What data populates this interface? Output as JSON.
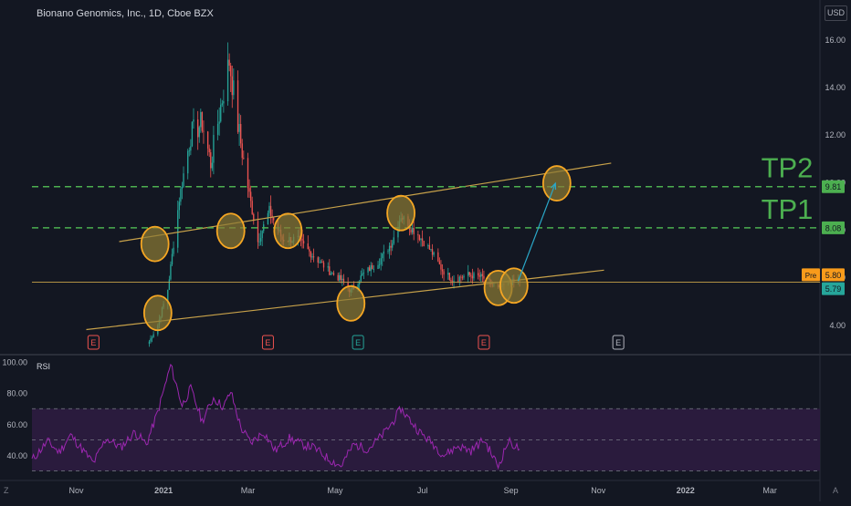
{
  "header": {
    "symbol_line": "Bionano Genomics, Inc., 1D, Cboe BZX",
    "currency": "USD"
  },
  "corner_left": "Z",
  "corner_right": "A",
  "colors": {
    "background": "#131722",
    "up": "#26a69a",
    "down": "#ef5350",
    "tp_line": "#4caf50",
    "tp_text": "#4caf50",
    "trendline": "#c8a24a",
    "circle_fill": "#8a7a35",
    "circle_stroke": "#f5a623",
    "arrow": "#2aa8c9",
    "rsi_line": "#9c27b0",
    "rsi_band": "#2a1b3d",
    "earnings": "#ef5350",
    "earnings_up": "#26a69a",
    "earnings_future": "#b2b5be",
    "pre_badge": "#f89b1b",
    "last_badge": "#26a69a",
    "tp_badge": "#4caf50"
  },
  "chart_data": [
    {
      "type": "candlestick",
      "title": "Bionano Genomics, Inc., 1D, Cboe BZX",
      "x_axis": {
        "type": "date",
        "range": [
          "2020-10-01",
          "2022-04-05"
        ],
        "tick_labels": [
          {
            "date": "2020-11-01",
            "label": "Nov"
          },
          {
            "date": "2021-01-01",
            "label": "2021"
          },
          {
            "date": "2021-03-01",
            "label": "Mar"
          },
          {
            "date": "2021-05-01",
            "label": "May"
          },
          {
            "date": "2021-07-01",
            "label": "Jul"
          },
          {
            "date": "2021-09-01",
            "label": "Sep"
          },
          {
            "date": "2021-11-01",
            "label": "Nov"
          },
          {
            "date": "2022-01-01",
            "label": "2022"
          },
          {
            "date": "2022-03-01",
            "label": "Mar"
          }
        ]
      },
      "y_axis": {
        "range": [
          2.9,
          16.7
        ],
        "ticks": [
          4.0,
          6.0,
          8.0,
          10.0,
          12.0,
          14.0,
          16.0
        ],
        "tick_labels": [
          "4.00",
          "6.00",
          "8.00",
          "10.00",
          "12.00",
          "14.00",
          "16.00"
        ],
        "unit": "USD"
      },
      "anchors": [
        [
          "2020-12-22",
          3.3
        ],
        [
          "2020-12-28",
          4.0
        ],
        [
          "2021-01-04",
          5.5
        ],
        [
          "2021-01-12",
          9.3
        ],
        [
          "2021-01-20",
          12.0
        ],
        [
          "2021-01-28",
          12.5
        ],
        [
          "2021-02-03",
          10.8
        ],
        [
          "2021-02-10",
          13.2
        ],
        [
          "2021-02-16",
          15.1
        ],
        [
          "2021-02-22",
          12.4
        ],
        [
          "2021-03-01",
          9.8
        ],
        [
          "2021-03-08",
          7.5
        ],
        [
          "2021-03-16",
          8.8
        ],
        [
          "2021-03-25",
          7.6
        ],
        [
          "2021-04-05",
          7.6
        ],
        [
          "2021-04-14",
          7.0
        ],
        [
          "2021-04-28",
          6.2
        ],
        [
          "2021-05-05",
          5.9
        ],
        [
          "2021-05-12",
          5.4
        ],
        [
          "2021-05-20",
          6.1
        ],
        [
          "2021-06-01",
          6.7
        ],
        [
          "2021-06-10",
          7.5
        ],
        [
          "2021-06-16",
          8.6
        ],
        [
          "2021-06-21",
          8.2
        ],
        [
          "2021-06-28",
          7.8
        ],
        [
          "2021-07-07",
          7.1
        ],
        [
          "2021-07-15",
          6.3
        ],
        [
          "2021-07-22",
          5.9
        ],
        [
          "2021-08-02",
          6.1
        ],
        [
          "2021-08-12",
          6.0
        ],
        [
          "2021-08-23",
          5.5
        ],
        [
          "2021-09-01",
          5.8
        ],
        [
          "2021-09-07",
          5.79
        ]
      ],
      "last_price": 5.79,
      "pre_market_price": 5.8,
      "price_badges": {
        "pre_label": "Pre",
        "pre_value": "5.80",
        "last_value": "5.79",
        "tp1_value": "8.08",
        "tp2_value": "9.81"
      },
      "levels": [
        {
          "name": "TP2",
          "value": 9.81,
          "style": "dashed"
        },
        {
          "name": "TP1",
          "value": 8.08,
          "style": "dashed"
        }
      ],
      "horizontal_line": {
        "value": 5.79
      },
      "channel": {
        "upper": [
          [
            "2020-12-01",
            7.5
          ],
          [
            "2021-11-10",
            10.8
          ]
        ],
        "lower": [
          [
            "2020-11-08",
            3.8
          ],
          [
            "2021-11-05",
            6.3
          ]
        ]
      },
      "marked_points": [
        [
          "2020-12-28",
          4.5
        ],
        [
          "2020-12-26",
          7.4
        ],
        [
          "2021-02-17",
          7.95
        ],
        [
          "2021-03-29",
          7.95
        ],
        [
          "2021-05-12",
          4.9
        ],
        [
          "2021-06-16",
          8.7
        ],
        [
          "2021-08-23",
          5.55
        ],
        [
          "2021-09-03",
          5.65
        ],
        [
          "2021-10-03",
          9.95
        ]
      ],
      "projection_arrow": {
        "from": [
          "2021-09-06",
          5.85
        ],
        "to": [
          "2021-10-02",
          9.95
        ]
      },
      "earnings_markers": [
        {
          "date": "2020-11-13",
          "label": "E",
          "kind": "past"
        },
        {
          "date": "2021-03-15",
          "label": "E",
          "kind": "past"
        },
        {
          "date": "2021-05-17",
          "label": "E",
          "kind": "past_up"
        },
        {
          "date": "2021-08-13",
          "label": "E",
          "kind": "past"
        },
        {
          "date": "2021-11-15",
          "label": "E",
          "kind": "future"
        }
      ]
    },
    {
      "type": "line",
      "title": "RSI",
      "y_axis": {
        "range": [
          25,
          103
        ],
        "ticks": [
          40,
          60,
          80,
          100
        ],
        "tick_labels": [
          "40.00",
          "60.00",
          "80.00",
          "100.00"
        ]
      },
      "bands": {
        "upper": 70,
        "middle": 50,
        "lower": 30
      },
      "x": [
        "2020-10-01",
        "2020-10-12",
        "2020-10-20",
        "2020-10-28",
        "2020-11-05",
        "2020-11-13",
        "2020-11-22",
        "2020-12-02",
        "2020-12-12",
        "2020-12-20",
        "2020-12-28",
        "2021-01-06",
        "2021-01-14",
        "2021-01-20",
        "2021-01-28",
        "2021-02-05",
        "2021-02-12",
        "2021-02-17",
        "2021-02-24",
        "2021-03-03",
        "2021-03-12",
        "2021-03-20",
        "2021-03-30",
        "2021-04-08",
        "2021-04-16",
        "2021-04-26",
        "2021-05-05",
        "2021-05-14",
        "2021-05-24",
        "2021-06-03",
        "2021-06-10",
        "2021-06-16",
        "2021-06-22",
        "2021-06-30",
        "2021-07-08",
        "2021-07-16",
        "2021-07-26",
        "2021-08-04",
        "2021-08-13",
        "2021-08-23",
        "2021-08-30",
        "2021-09-07"
      ],
      "values": [
        37,
        49,
        42,
        53,
        44,
        35,
        51,
        45,
        55,
        47,
        68,
        98,
        72,
        83,
        62,
        77,
        71,
        81,
        58,
        48,
        55,
        43,
        51,
        47,
        45,
        38,
        33,
        47,
        44,
        53,
        61,
        70,
        63,
        54,
        48,
        40,
        46,
        43,
        50,
        33,
        49,
        44
      ]
    }
  ]
}
